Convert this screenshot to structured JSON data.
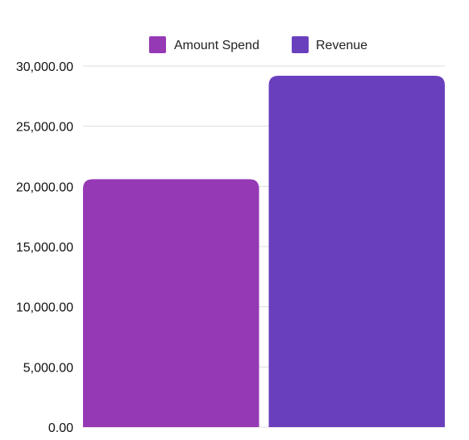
{
  "chart_data": {
    "type": "bar",
    "title": "",
    "xlabel": "",
    "ylabel": "",
    "categories": [
      ""
    ],
    "series": [
      {
        "name": "Amount Spend",
        "values": [
          20600
        ],
        "color": "#9639b5"
      },
      {
        "name": "Revenue",
        "values": [
          29200
        ],
        "color": "#6a3fbd"
      }
    ],
    "ylim": [
      0,
      30000
    ],
    "yticks": [
      0,
      5000,
      10000,
      15000,
      20000,
      25000,
      30000
    ],
    "ytick_labels": [
      "0.00",
      "5,000.00",
      "10,000.00",
      "15,000.00",
      "20,000.00",
      "25,000.00",
      "30,000.00"
    ],
    "grid": true,
    "legend_position": "top"
  }
}
